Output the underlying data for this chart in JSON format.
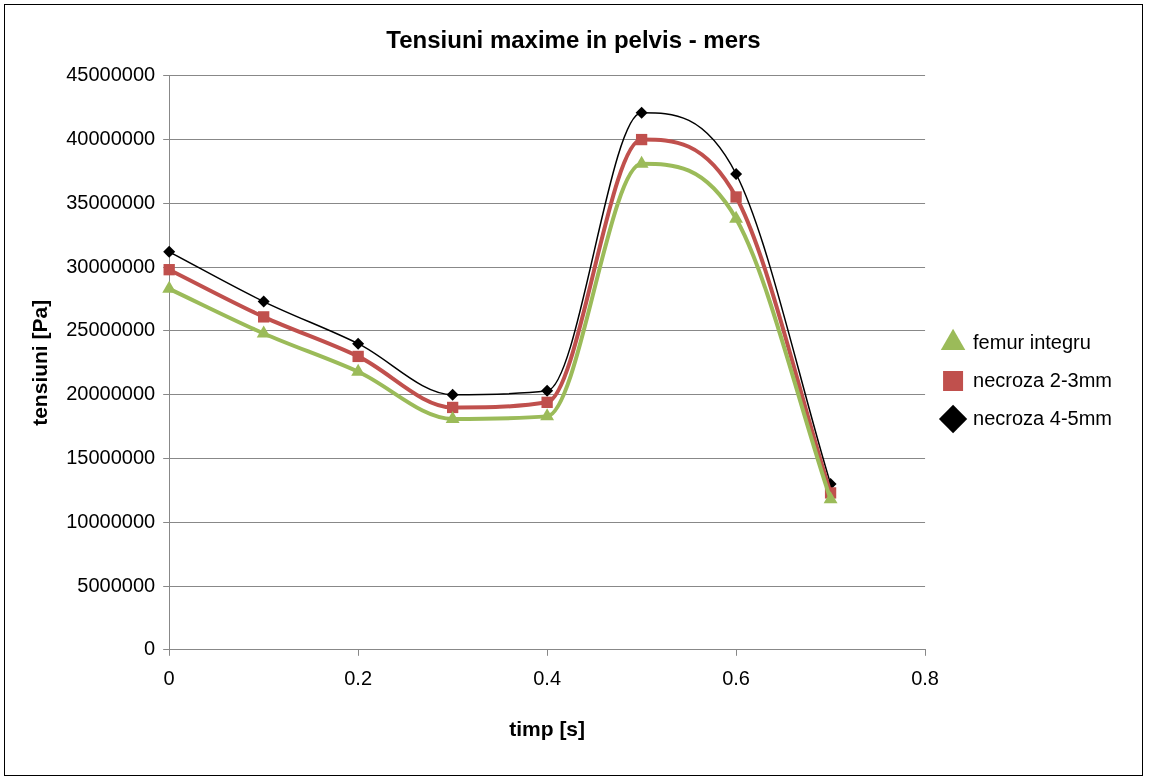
{
  "chart_data": {
    "type": "line",
    "title": "Tensiuni maxime in pelvis - mers",
    "xlabel": "timp [s]",
    "ylabel": "tensiuni [Pa]",
    "x": [
      0,
      0.1,
      0.2,
      0.3,
      0.4,
      0.5,
      0.6,
      0.7
    ],
    "series": [
      {
        "name": "femur integru",
        "color": "#9bbb59",
        "marker": "triangle",
        "values": [
          28300000,
          24800000,
          21800000,
          18100000,
          18300000,
          38100000,
          33800000,
          11800000
        ]
      },
      {
        "name": "necroza 2-3mm",
        "color": "#c0504d",
        "marker": "square",
        "values": [
          29800000,
          26100000,
          23000000,
          19000000,
          19400000,
          40000000,
          35500000,
          12300000
        ]
      },
      {
        "name": "necroza 4-5mm",
        "color": "#000000",
        "marker": "diamond",
        "values": [
          31200000,
          27300000,
          24000000,
          20000000,
          20300000,
          42100000,
          37300000,
          13000000
        ]
      }
    ],
    "xlim": [
      0,
      0.8
    ],
    "xticks": [
      0,
      0.2,
      0.4,
      0.6,
      0.8
    ],
    "ylim": [
      0,
      45000000
    ],
    "yticks": [
      0,
      5000000,
      10000000,
      15000000,
      20000000,
      25000000,
      30000000,
      35000000,
      40000000,
      45000000
    ],
    "grid": "y",
    "legend": "right"
  }
}
